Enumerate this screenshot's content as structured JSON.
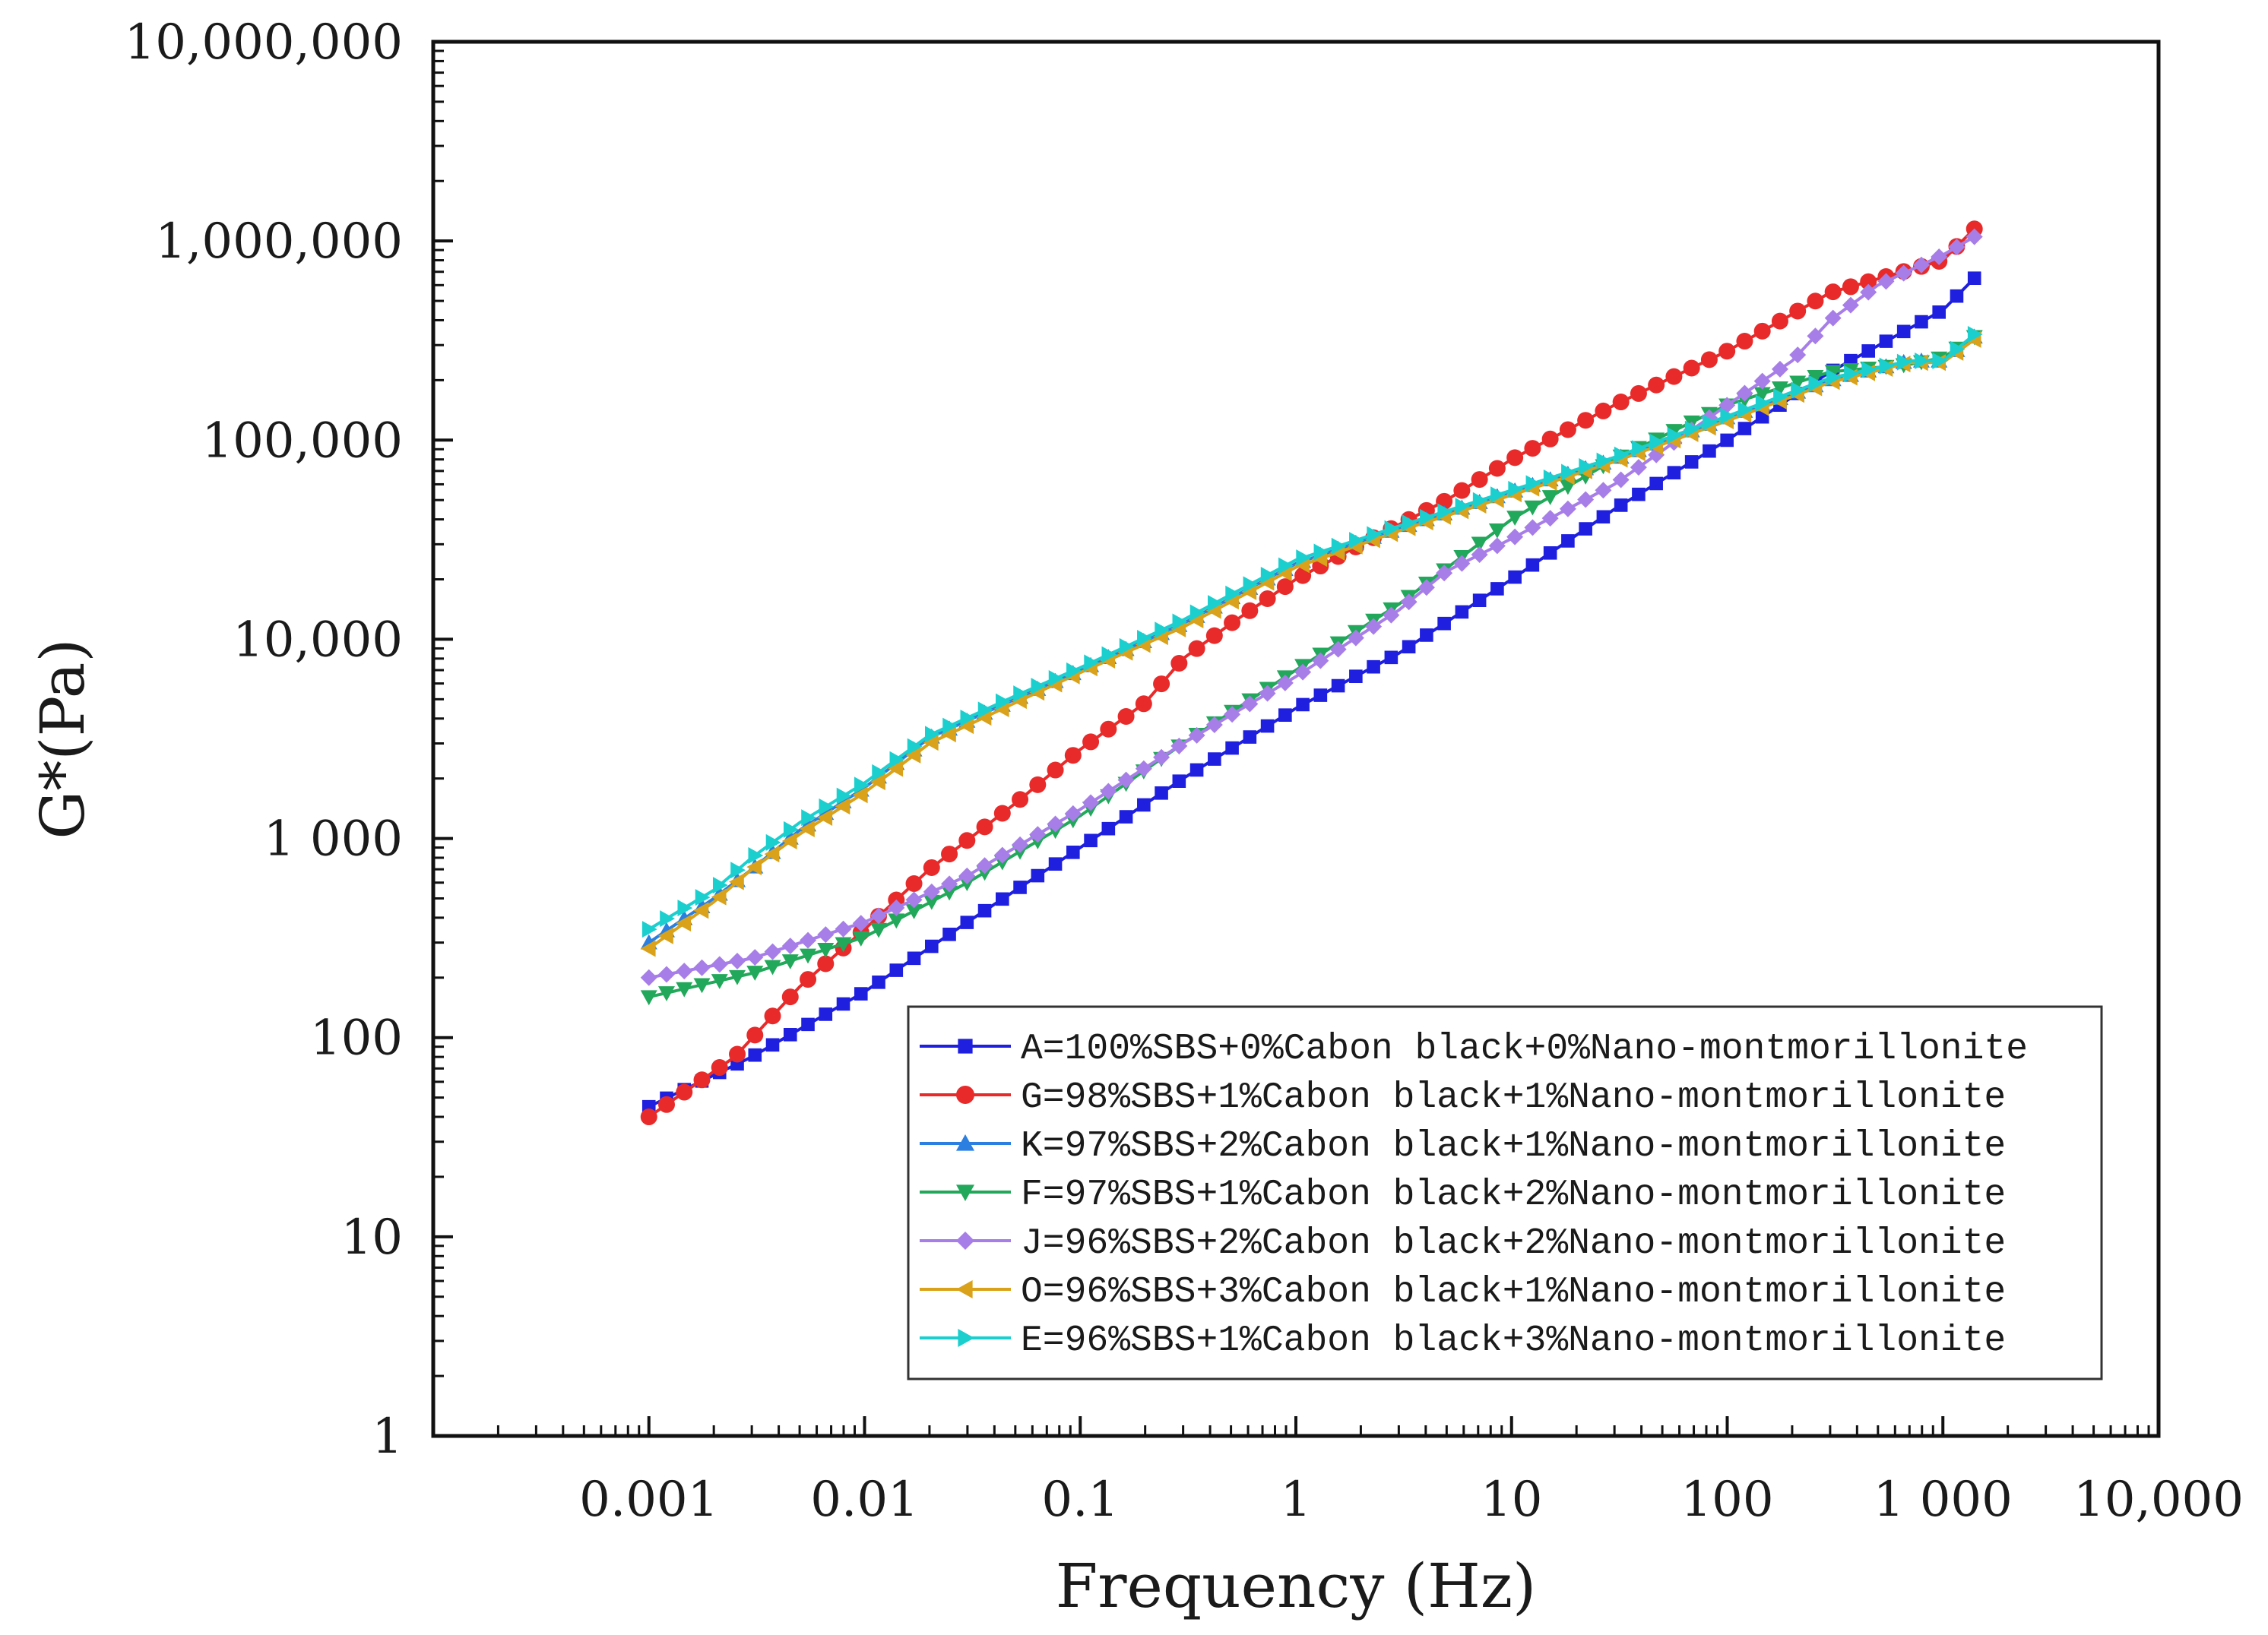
{
  "chart_data": {
    "type": "line",
    "xscale": "log",
    "yscale": "log",
    "xlabel": "Frequency (Hz)",
    "ylabel": "G*(Pa)",
    "xlim": [
      0.0001,
      10000
    ],
    "ylim": [
      1,
      10000000
    ],
    "x_ticks": [
      {
        "value": 0.001,
        "label": "0.001"
      },
      {
        "value": 0.01,
        "label": "0.01"
      },
      {
        "value": 0.1,
        "label": "0.1"
      },
      {
        "value": 1,
        "label": "1"
      },
      {
        "value": 10,
        "label": "10"
      },
      {
        "value": 100,
        "label": "100"
      },
      {
        "value": 1000,
        "label": "1 000"
      },
      {
        "value": 10000,
        "label": "10,000"
      }
    ],
    "y_ticks": [
      {
        "value": 1,
        "label": "1"
      },
      {
        "value": 10,
        "label": "10"
      },
      {
        "value": 100,
        "label": "100"
      },
      {
        "value": 1000,
        "label": "1 000"
      },
      {
        "value": 10000,
        "label": "10,000"
      },
      {
        "value": 100000,
        "label": "100,000"
      },
      {
        "value": 1000000,
        "label": "1,000,000"
      },
      {
        "value": 10000000,
        "label": "10,000,000"
      }
    ],
    "grid": false,
    "legend_position": "bottom-right",
    "series": [
      {
        "name": "A=100%SBS+0%Cabon black+0%Nano-montmorillonite",
        "color": "#1f1fe0",
        "marker": "square",
        "points": [
          [
            0.001,
            45
          ],
          [
            0.003,
            80
          ],
          [
            0.01,
            170
          ],
          [
            0.03,
            380
          ],
          [
            0.1,
            900
          ],
          [
            0.3,
            2000
          ],
          [
            1,
            4500
          ],
          [
            3,
            8500
          ],
          [
            10,
            20000
          ],
          [
            30,
            45000
          ],
          [
            100,
            100000
          ],
          [
            300,
            220000
          ],
          [
            1000,
            450000
          ],
          [
            1400,
            650000
          ]
        ]
      },
      {
        "name": "G=98%SBS+1%Cabon black+1%Nano-montmorillonite",
        "color": "#e82a2a",
        "marker": "circle",
        "points": [
          [
            0.001,
            40
          ],
          [
            0.0025,
            80
          ],
          [
            0.005,
            180
          ],
          [
            0.01,
            350
          ],
          [
            0.02,
            700
          ],
          [
            0.05,
            1500
          ],
          [
            0.1,
            2800
          ],
          [
            0.2,
            4800
          ],
          [
            0.3,
            8000
          ],
          [
            0.5,
            12000
          ],
          [
            1,
            20000
          ],
          [
            2,
            30000
          ],
          [
            5,
            50000
          ],
          [
            10,
            80000
          ],
          [
            30,
            150000
          ],
          [
            100,
            280000
          ],
          [
            300,
            550000
          ],
          [
            1000,
            800000
          ],
          [
            1400,
            1150000
          ]
        ]
      },
      {
        "name": "K=97%SBS+2%Cabon black+1%Nano-montmorillonite",
        "color": "#2a7fe0",
        "marker": "triangle-up",
        "points": [
          [
            0.001,
            300
          ],
          [
            0.002,
            500
          ],
          [
            0.003,
            700
          ],
          [
            0.005,
            1100
          ],
          [
            0.01,
            1800
          ],
          [
            0.02,
            3200
          ],
          [
            0.05,
            5000
          ],
          [
            0.1,
            7000
          ],
          [
            0.3,
            12000
          ],
          [
            1,
            24000
          ],
          [
            3,
            36000
          ],
          [
            10,
            55000
          ],
          [
            30,
            80000
          ],
          [
            100,
            130000
          ],
          [
            300,
            200000
          ],
          [
            700,
            250000
          ],
          [
            1000,
            250000
          ],
          [
            1400,
            330000
          ]
        ]
      },
      {
        "name": "F=97%SBS+1%Cabon black+2%Nano-montmorillonite",
        "color": "#22a85a",
        "marker": "triangle-down",
        "points": [
          [
            0.001,
            160
          ],
          [
            0.003,
            210
          ],
          [
            0.01,
            320
          ],
          [
            0.03,
            600
          ],
          [
            0.1,
            1300
          ],
          [
            0.3,
            3000
          ],
          [
            1,
            7000
          ],
          [
            3,
            15000
          ],
          [
            10,
            40000
          ],
          [
            30,
            80000
          ],
          [
            100,
            150000
          ],
          [
            300,
            220000
          ],
          [
            700,
            240000
          ],
          [
            1000,
            260000
          ],
          [
            1400,
            330000
          ]
        ]
      },
      {
        "name": "J=96%SBS+2%Cabon black+2%Nano-montmorillonite",
        "color": "#a77ee8",
        "marker": "diamond",
        "points": [
          [
            0.001,
            200
          ],
          [
            0.003,
            250
          ],
          [
            0.01,
            380
          ],
          [
            0.03,
            650
          ],
          [
            0.1,
            1400
          ],
          [
            0.3,
            3000
          ],
          [
            1,
            6500
          ],
          [
            3,
            14000
          ],
          [
            5,
            22000
          ],
          [
            10,
            32000
          ],
          [
            30,
            60000
          ],
          [
            100,
            150000
          ],
          [
            200,
            250000
          ],
          [
            300,
            400000
          ],
          [
            500,
            600000
          ],
          [
            1000,
            850000
          ],
          [
            1400,
            1050000
          ]
        ]
      },
      {
        "name": "O=96%SBS+3%Cabon black+1%Nano-montmorillonite",
        "color": "#d9a21a",
        "marker": "triangle-left",
        "points": [
          [
            0.001,
            280
          ],
          [
            0.002,
            480
          ],
          [
            0.003,
            700
          ],
          [
            0.005,
            1050
          ],
          [
            0.01,
            1700
          ],
          [
            0.02,
            3000
          ],
          [
            0.05,
            4800
          ],
          [
            0.1,
            6800
          ],
          [
            0.3,
            11500
          ],
          [
            1,
            23000
          ],
          [
            3,
            35000
          ],
          [
            10,
            53000
          ],
          [
            30,
            78000
          ],
          [
            100,
            125000
          ],
          [
            300,
            195000
          ],
          [
            700,
            245000
          ],
          [
            1000,
            245000
          ],
          [
            1400,
            320000
          ]
        ]
      },
      {
        "name": "E=96%SBS+1%Cabon black+3%Nano-montmorillonite",
        "color": "#1ccfcf",
        "marker": "triangle-right",
        "points": [
          [
            0.001,
            350
          ],
          [
            0.002,
            550
          ],
          [
            0.003,
            800
          ],
          [
            0.005,
            1200
          ],
          [
            0.01,
            1900
          ],
          [
            0.02,
            3300
          ],
          [
            0.05,
            5200
          ],
          [
            0.1,
            7200
          ],
          [
            0.3,
            12500
          ],
          [
            1,
            25000
          ],
          [
            3,
            37000
          ],
          [
            10,
            56000
          ],
          [
            30,
            82000
          ],
          [
            100,
            132000
          ],
          [
            300,
            205000
          ],
          [
            700,
            250000
          ],
          [
            1000,
            250000
          ],
          [
            1400,
            340000
          ]
        ]
      }
    ]
  }
}
